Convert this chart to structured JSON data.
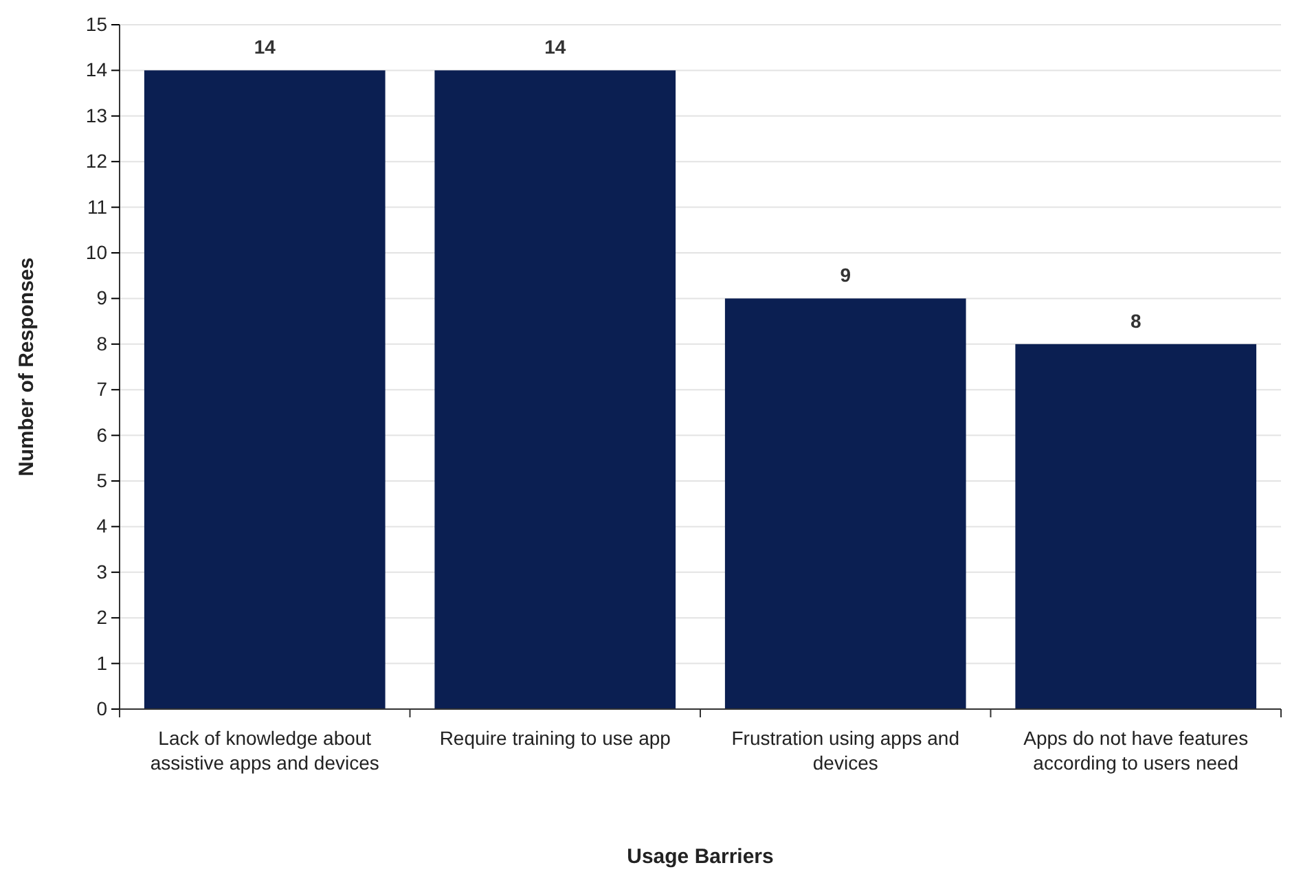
{
  "chart_data": {
    "type": "bar",
    "xlabel": "Usage Barriers",
    "ylabel": "Number of Responses",
    "categories": [
      "Lack of knowledge about assistive apps and devices",
      "Require training to use app",
      "Frustration using apps and devices",
      "Apps do not have features according to users need"
    ],
    "values": [
      14,
      14,
      9,
      8
    ],
    "color": "#0b1f52",
    "ylim": [
      0,
      15
    ],
    "yticks": [
      0,
      1,
      2,
      3,
      4,
      5,
      6,
      7,
      8,
      9,
      10,
      11,
      12,
      13,
      14,
      15
    ],
    "grid": "y",
    "data_labels": true
  }
}
